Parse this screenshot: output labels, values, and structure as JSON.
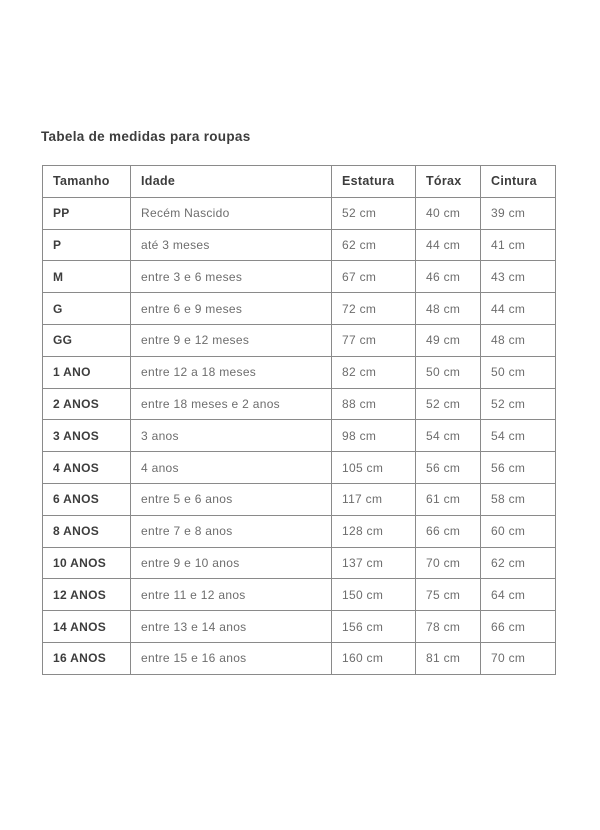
{
  "page": {
    "title": "Tabela de medidas para roupas"
  },
  "table": {
    "columns": [
      "Tamanho",
      "Idade",
      "Estatura",
      "Tórax",
      "Cintura"
    ],
    "rows": [
      [
        "PP",
        "Recém Nascido",
        "52 cm",
        "40 cm",
        "39 cm"
      ],
      [
        "P",
        "até 3 meses",
        "62 cm",
        "44 cm",
        "41 cm"
      ],
      [
        "M",
        "entre 3 e 6 meses",
        "67 cm",
        "46 cm",
        "43 cm"
      ],
      [
        "G",
        "entre 6 e 9 meses",
        "72 cm",
        "48 cm",
        "44 cm"
      ],
      [
        "GG",
        "entre 9 e 12 meses",
        "77 cm",
        "49 cm",
        "48 cm"
      ],
      [
        "1 ANO",
        "entre 12 a 18 meses",
        "82 cm",
        "50 cm",
        "50 cm"
      ],
      [
        "2 ANOS",
        "entre 18 meses e 2 anos",
        "88 cm",
        "52 cm",
        "52 cm"
      ],
      [
        "3 ANOS",
        "3 anos",
        "98 cm",
        "54 cm",
        "54 cm"
      ],
      [
        "4 ANOS",
        "4 anos",
        "105 cm",
        "56 cm",
        "56 cm"
      ],
      [
        "6 ANOS",
        "entre 5 e 6 anos",
        "117 cm",
        "61 cm",
        "58 cm"
      ],
      [
        "8 ANOS",
        "entre 7 e 8 anos",
        "128 cm",
        "66 cm",
        "60 cm"
      ],
      [
        "10 ANOS",
        "entre 9 e 10 anos",
        "137 cm",
        "70 cm",
        "62 cm"
      ],
      [
        "12 ANOS",
        "entre 11 e 12 anos",
        "150 cm",
        "75 cm",
        "64 cm"
      ],
      [
        "14 ANOS",
        "entre 13 e 14 anos",
        "156 cm",
        "78 cm",
        "66 cm"
      ],
      [
        "16 ANOS",
        "entre 15 e 16 anos",
        "160 cm",
        "81 cm",
        "70 cm"
      ]
    ]
  },
  "colors": {
    "page_background": "#ffffff",
    "table_border": "#8a8a8a",
    "heading_text": "#3d3d3d",
    "body_text": "#6d6d6d"
  }
}
